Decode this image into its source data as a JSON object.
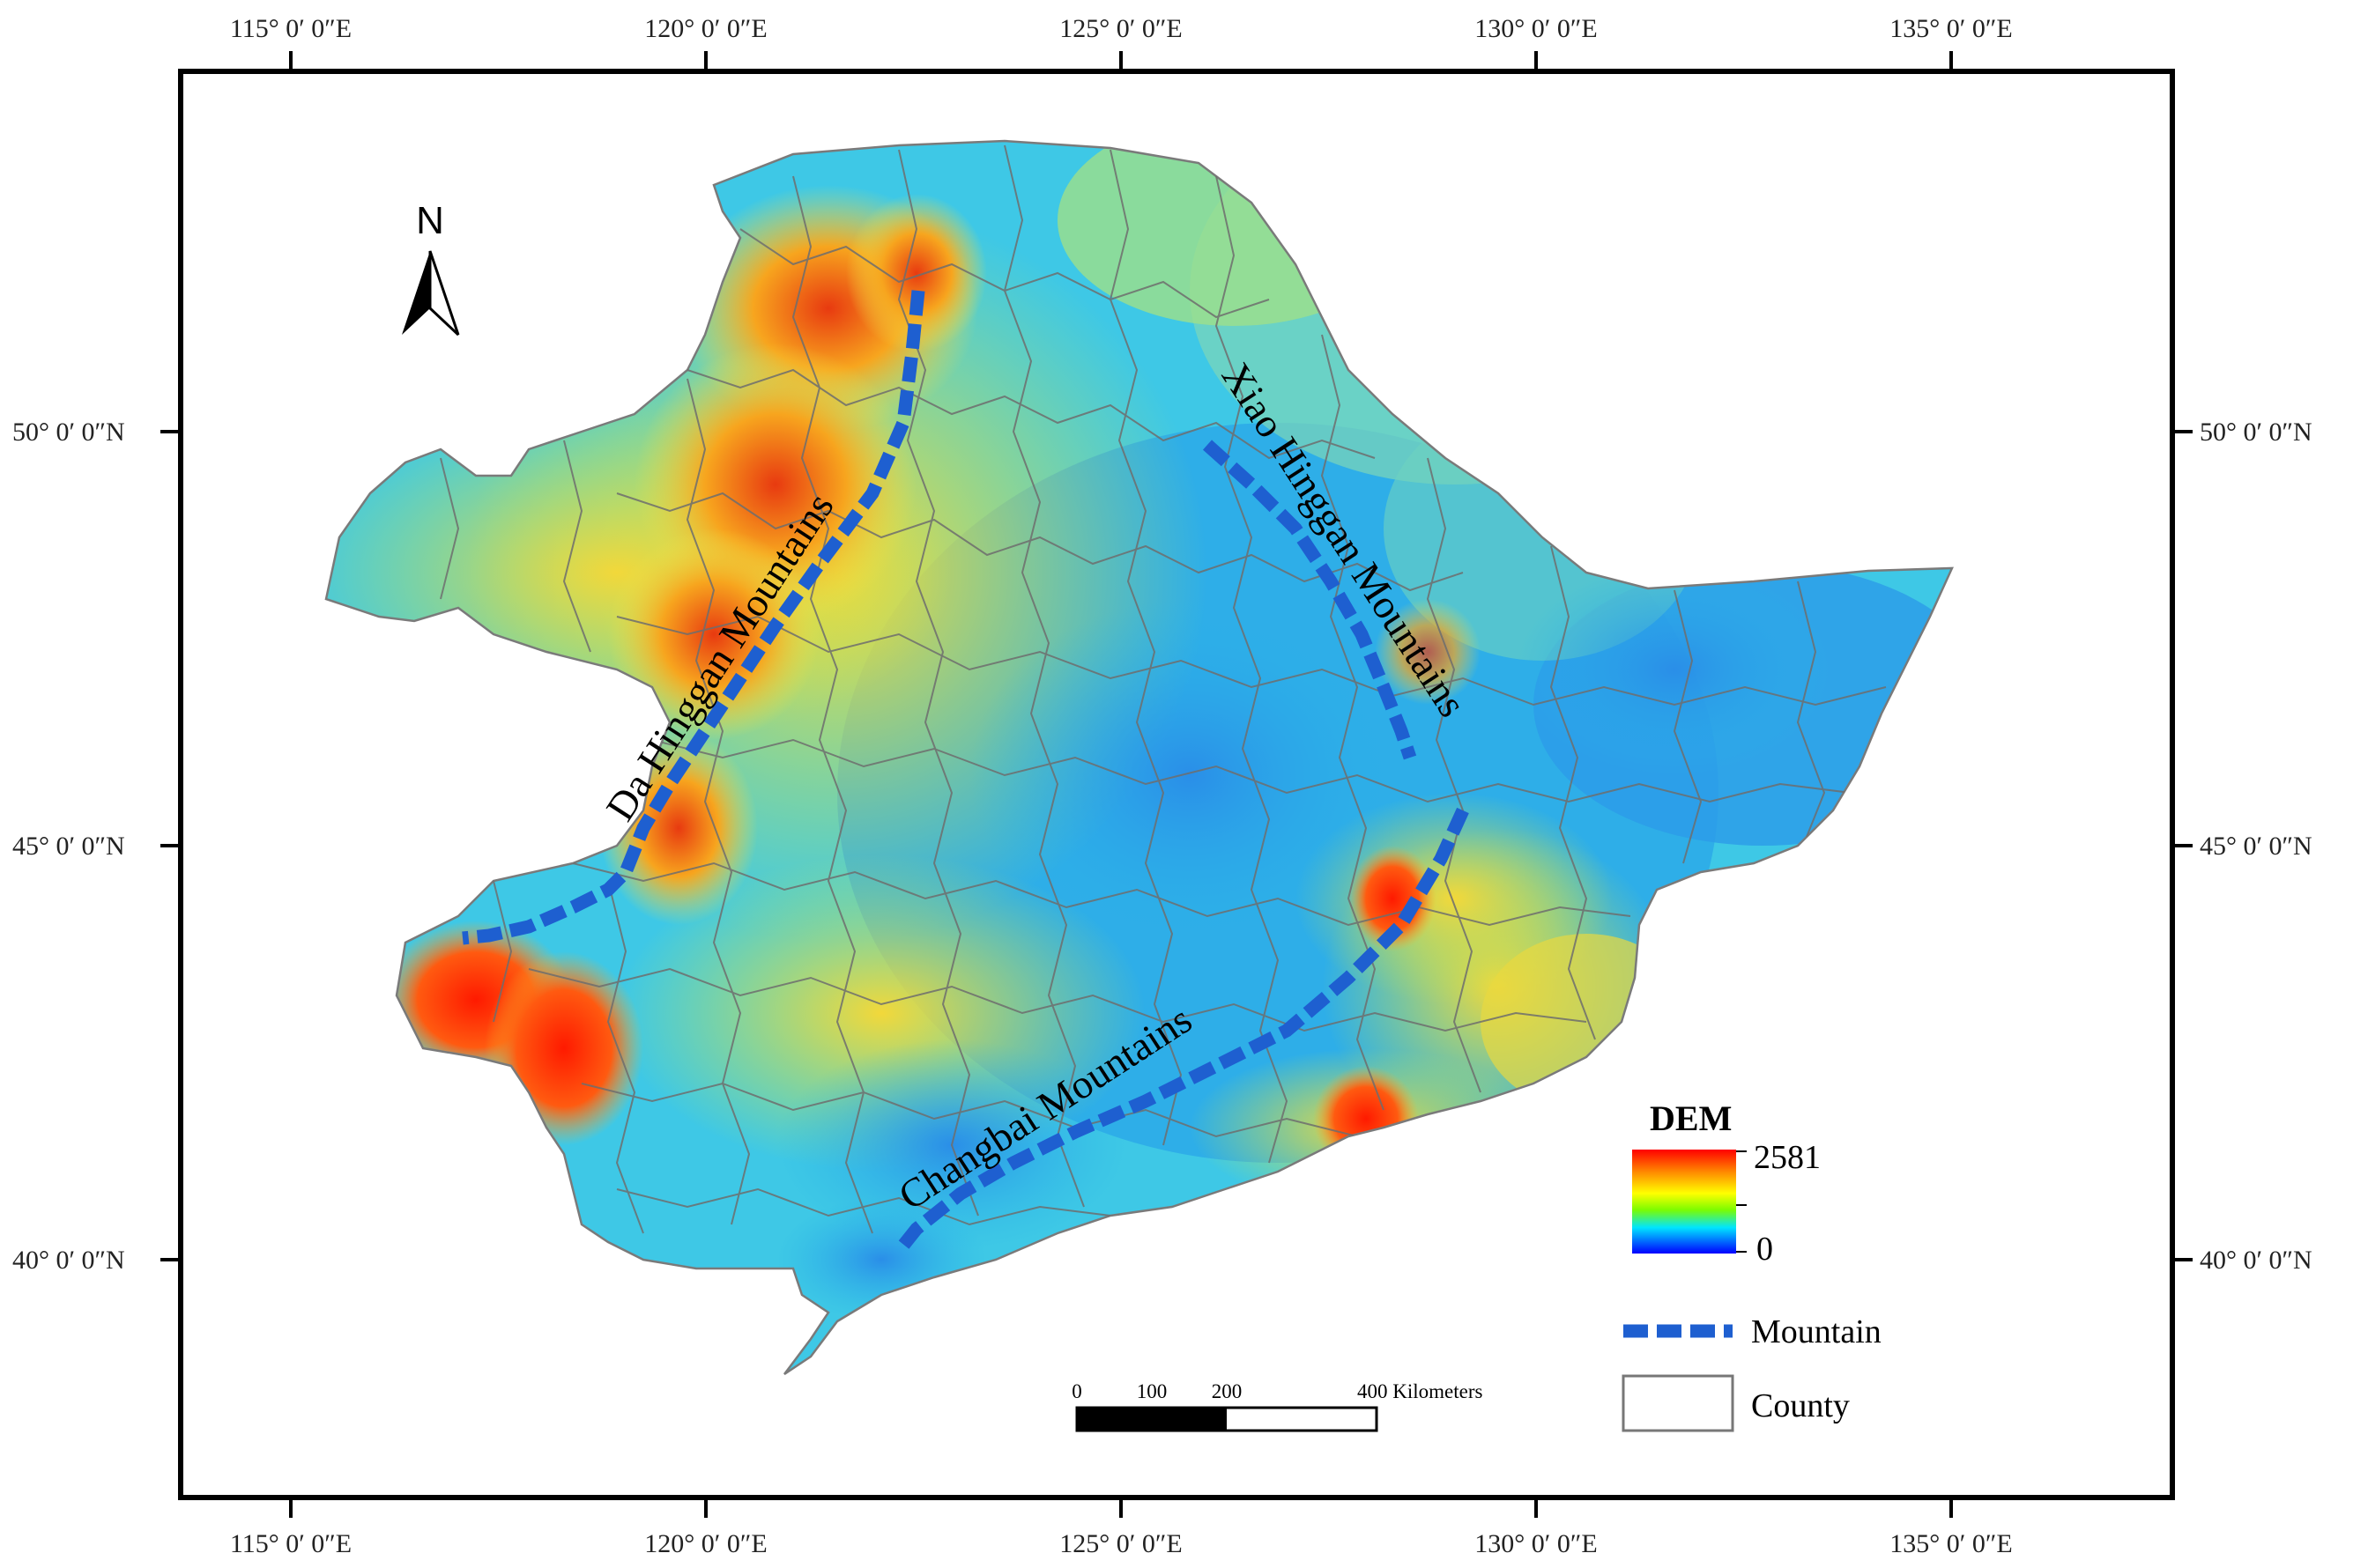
{
  "coordinates": {
    "top": [
      "115° 0′ 0″E",
      "120° 0′ 0″E",
      "125° 0′ 0″E",
      "130° 0′ 0″E",
      "135° 0′ 0″E"
    ],
    "bottom": [
      "115° 0′ 0″E",
      "120° 0′ 0″E",
      "125° 0′ 0″E",
      "130° 0′ 0″E",
      "135° 0′ 0″E"
    ],
    "left": [
      "50° 0′ 0″N",
      "45° 0′ 0″N",
      "40° 0′ 0″N"
    ],
    "right": [
      "50° 0′ 0″N",
      "45° 0′ 0″N",
      "40° 0′ 0″N"
    ]
  },
  "north_arrow": {
    "label": "N"
  },
  "mountains": {
    "da": "Da Hinggan Mountains",
    "xiao": "Xiao Hinggan Mountains",
    "changbai": "Changbai Mountains"
  },
  "legend": {
    "dem_title": "DEM",
    "dem_max": "2581",
    "dem_min": "0",
    "mountain_label": "Mountain",
    "county_label": "County"
  },
  "scale_bar": {
    "ticks": [
      "0",
      "100",
      "200"
    ],
    "end_label": "400 Kilometers"
  },
  "colors": {
    "mountain_line": "#1e5fd0",
    "dem_high": "#ff0000",
    "dem_mid": "#ffff00",
    "dem_low": "#0000ff",
    "county_border": "#7a7a7a"
  }
}
